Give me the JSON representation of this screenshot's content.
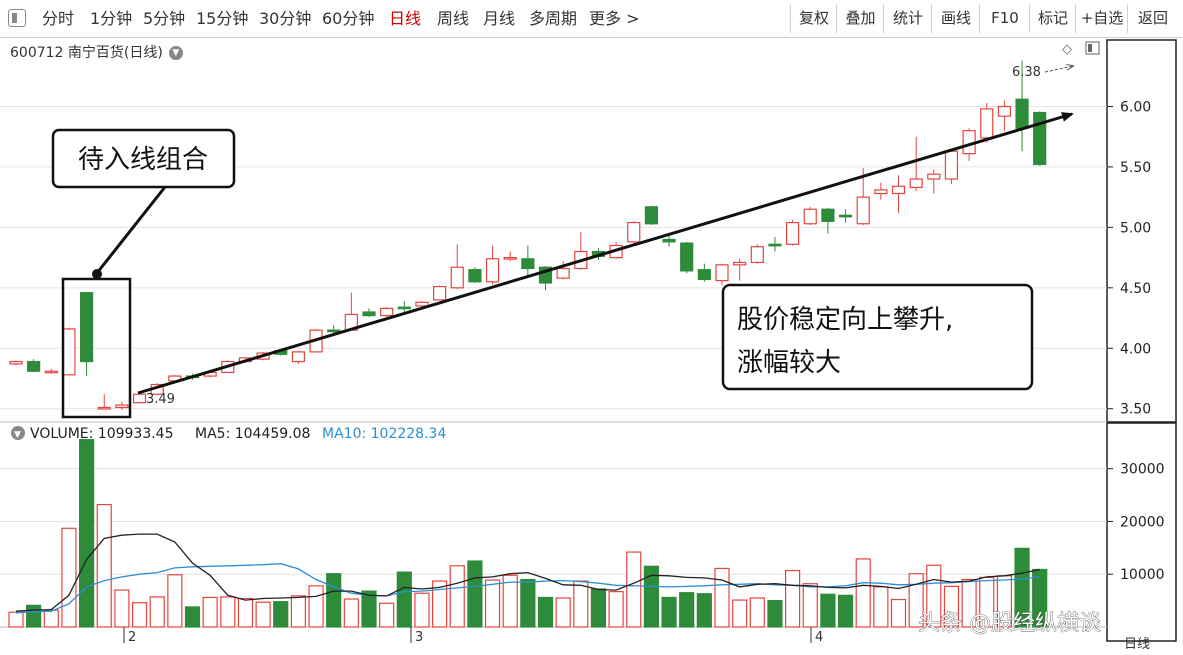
{
  "toolbar": {
    "periods": [
      "分时",
      "1分钟",
      "5分钟",
      "15分钟",
      "30分钟",
      "60分钟",
      "日线",
      "周线",
      "月线",
      "多周期",
      "更多 >"
    ],
    "active_index": 6,
    "actions": [
      "复权",
      "叠加",
      "统计",
      "画线",
      "F10",
      "标记",
      "+自选",
      "返回"
    ]
  },
  "stock": {
    "title": "600712 南宁百货(日线)"
  },
  "price_axis": {
    "ticks": [
      "6.00",
      "5.50",
      "5.00",
      "4.50",
      "4.00",
      "3.50"
    ],
    "tick_values": [
      6.0,
      5.5,
      5.0,
      4.5,
      4.0,
      3.5
    ]
  },
  "annotations": {
    "high_label": "6.38",
    "low_label": "3.49",
    "callout_left": "待入线组合",
    "callout_right_line1": "股价稳定向上攀升,",
    "callout_right_line2": "涨幅较大"
  },
  "volume": {
    "label": "VOLUME: 109933.45",
    "ma5_label": "MA5: 104459.08",
    "ma10_label": "MA10: 102228.34",
    "ticks": [
      "30000",
      "20000",
      "10000"
    ],
    "tick_values": [
      30000,
      20000,
      10000
    ]
  },
  "date_axis": {
    "labels": [
      "2",
      "3",
      "4"
    ],
    "period_label": "日线"
  },
  "watermark": "头条 @股经纵横谈",
  "colors": {
    "up": "#e8443f",
    "down": "#2e8b3a",
    "ma5": "#222222",
    "ma10": "#2a8fd6",
    "active_tab": "#d50000"
  },
  "chart_data": {
    "type": "candlestick",
    "y_range": [
      3.39,
      6.55
    ],
    "volume_range": [
      0,
      36000
    ],
    "candles": [
      {
        "o": 3.87,
        "c": 3.89,
        "h": 3.9,
        "l": 3.86,
        "up": true
      },
      {
        "o": 3.89,
        "c": 3.81,
        "h": 3.91,
        "l": 3.8,
        "up": false
      },
      {
        "o": 3.81,
        "c": 3.81,
        "h": 3.83,
        "l": 3.79,
        "up": true
      },
      {
        "o": 3.78,
        "c": 4.16,
        "h": 4.17,
        "l": 3.78,
        "up": true
      },
      {
        "o": 4.46,
        "c": 3.89,
        "h": 4.46,
        "l": 3.77,
        "up": false
      },
      {
        "o": 3.5,
        "c": 3.51,
        "h": 3.62,
        "l": 3.5,
        "up": true
      },
      {
        "o": 3.51,
        "c": 3.53,
        "h": 3.56,
        "l": 3.49,
        "up": true
      },
      {
        "o": 3.55,
        "c": 3.62,
        "h": 3.63,
        "l": 3.55,
        "up": true
      },
      {
        "o": 3.62,
        "c": 3.7,
        "h": 3.71,
        "l": 3.61,
        "up": true
      },
      {
        "o": 3.73,
        "c": 3.77,
        "h": 3.78,
        "l": 3.72,
        "up": true
      },
      {
        "o": 3.77,
        "c": 3.76,
        "h": 3.79,
        "l": 3.74,
        "up": false
      },
      {
        "o": 3.77,
        "c": 3.8,
        "h": 3.82,
        "l": 3.76,
        "up": true
      },
      {
        "o": 3.8,
        "c": 3.89,
        "h": 3.9,
        "l": 3.8,
        "up": true
      },
      {
        "o": 3.89,
        "c": 3.92,
        "h": 3.93,
        "l": 3.88,
        "up": true
      },
      {
        "o": 3.91,
        "c": 3.96,
        "h": 3.97,
        "l": 3.9,
        "up": true
      },
      {
        "o": 3.98,
        "c": 3.95,
        "h": 3.99,
        "l": 3.94,
        "up": false
      },
      {
        "o": 3.89,
        "c": 3.97,
        "h": 3.98,
        "l": 3.87,
        "up": true
      },
      {
        "o": 3.97,
        "c": 4.15,
        "h": 4.16,
        "l": 3.97,
        "up": true
      },
      {
        "o": 4.15,
        "c": 4.15,
        "h": 4.19,
        "l": 4.1,
        "up": false
      },
      {
        "o": 4.15,
        "c": 4.28,
        "h": 4.46,
        "l": 4.15,
        "up": true
      },
      {
        "o": 4.3,
        "c": 4.27,
        "h": 4.33,
        "l": 4.26,
        "up": false
      },
      {
        "o": 4.27,
        "c": 4.33,
        "h": 4.34,
        "l": 4.26,
        "up": true
      },
      {
        "o": 4.34,
        "c": 4.34,
        "h": 4.39,
        "l": 4.29,
        "up": false
      },
      {
        "o": 4.35,
        "c": 4.38,
        "h": 4.39,
        "l": 4.34,
        "up": true
      },
      {
        "o": 4.4,
        "c": 4.51,
        "h": 4.52,
        "l": 4.4,
        "up": true
      },
      {
        "o": 4.5,
        "c": 4.67,
        "h": 4.86,
        "l": 4.49,
        "up": true
      },
      {
        "o": 4.65,
        "c": 4.55,
        "h": 4.67,
        "l": 4.54,
        "up": false
      },
      {
        "o": 4.55,
        "c": 4.74,
        "h": 4.85,
        "l": 4.53,
        "up": true
      },
      {
        "o": 4.75,
        "c": 4.74,
        "h": 4.8,
        "l": 4.72,
        "up": true
      },
      {
        "o": 4.74,
        "c": 4.66,
        "h": 4.85,
        "l": 4.6,
        "up": false
      },
      {
        "o": 4.67,
        "c": 4.54,
        "h": 4.68,
        "l": 4.48,
        "up": false
      },
      {
        "o": 4.58,
        "c": 4.66,
        "h": 4.72,
        "l": 4.57,
        "up": true
      },
      {
        "o": 4.66,
        "c": 4.8,
        "h": 4.96,
        "l": 4.65,
        "up": true
      },
      {
        "o": 4.8,
        "c": 4.76,
        "h": 4.83,
        "l": 4.73,
        "up": false
      },
      {
        "o": 4.75,
        "c": 4.85,
        "h": 4.88,
        "l": 4.74,
        "up": true
      },
      {
        "o": 4.88,
        "c": 5.04,
        "h": 5.05,
        "l": 4.87,
        "up": true
      },
      {
        "o": 5.17,
        "c": 5.03,
        "h": 5.18,
        "l": 5.02,
        "up": false
      },
      {
        "o": 4.9,
        "c": 4.88,
        "h": 4.93,
        "l": 4.84,
        "up": false
      },
      {
        "o": 4.87,
        "c": 4.64,
        "h": 4.88,
        "l": 4.62,
        "up": false
      },
      {
        "o": 4.65,
        "c": 4.57,
        "h": 4.7,
        "l": 4.55,
        "up": false
      },
      {
        "o": 4.56,
        "c": 4.69,
        "h": 4.7,
        "l": 4.52,
        "up": true
      },
      {
        "o": 4.69,
        "c": 4.71,
        "h": 4.74,
        "l": 4.56,
        "up": true
      },
      {
        "o": 4.71,
        "c": 4.84,
        "h": 4.86,
        "l": 4.7,
        "up": true
      },
      {
        "o": 4.86,
        "c": 4.86,
        "h": 4.92,
        "l": 4.8,
        "up": false
      },
      {
        "o": 4.86,
        "c": 5.04,
        "h": 5.06,
        "l": 4.85,
        "up": true
      },
      {
        "o": 5.03,
        "c": 5.15,
        "h": 5.17,
        "l": 5.02,
        "up": true
      },
      {
        "o": 5.15,
        "c": 5.05,
        "h": 5.16,
        "l": 4.95,
        "up": false
      },
      {
        "o": 5.1,
        "c": 5.1,
        "h": 5.15,
        "l": 5.04,
        "up": false
      },
      {
        "o": 5.03,
        "c": 5.25,
        "h": 5.49,
        "l": 5.02,
        "up": true
      },
      {
        "o": 5.28,
        "c": 5.31,
        "h": 5.37,
        "l": 5.23,
        "up": true
      },
      {
        "o": 5.28,
        "c": 5.34,
        "h": 5.43,
        "l": 5.12,
        "up": true
      },
      {
        "o": 5.33,
        "c": 5.4,
        "h": 5.75,
        "l": 5.3,
        "up": true
      },
      {
        "o": 5.4,
        "c": 5.44,
        "h": 5.48,
        "l": 5.28,
        "up": true
      },
      {
        "o": 5.4,
        "c": 5.63,
        "h": 5.65,
        "l": 5.36,
        "up": true
      },
      {
        "o": 5.61,
        "c": 5.8,
        "h": 5.82,
        "l": 5.55,
        "up": true
      },
      {
        "o": 5.74,
        "c": 5.98,
        "h": 6.03,
        "l": 5.7,
        "up": true
      },
      {
        "o": 5.92,
        "c": 6.0,
        "h": 6.05,
        "l": 5.8,
        "up": true
      },
      {
        "o": 6.06,
        "c": 5.82,
        "h": 6.38,
        "l": 5.63,
        "up": false
      },
      {
        "o": 5.95,
        "c": 5.52,
        "h": 5.96,
        "l": 5.51,
        "up": false
      }
    ],
    "volumes": [
      2800,
      4100,
      3200,
      18700,
      35500,
      23200,
      7000,
      4600,
      5700,
      9900,
      3800,
      5600,
      5700,
      5400,
      4700,
      4800,
      5900,
      7800,
      10100,
      5300,
      6800,
      4500,
      10400,
      6400,
      8700,
      11600,
      12500,
      8900,
      9800,
      9000,
      5600,
      5500,
      8700,
      7200,
      6700,
      14200,
      11500,
      5600,
      6500,
      6300,
      11100,
      5100,
      5500,
      5000,
      10700,
      8200,
      6200,
      6000,
      12900,
      7600,
      5200,
      10100,
      11700,
      7700,
      9000,
      9400,
      9700,
      14900,
      10900
    ],
    "ma5": [
      3000,
      3200,
      3300,
      6000,
      12800,
      16800,
      17400,
      17600,
      17600,
      16100,
      12100,
      9800,
      6000,
      5100,
      5400,
      5500,
      5600,
      5800,
      6800,
      6800,
      6000,
      5900,
      7500,
      7200,
      7500,
      8300,
      9300,
      9500,
      10100,
      10300,
      9200,
      8000,
      7900,
      7100,
      7000,
      8300,
      9800,
      9700,
      9400,
      9300,
      8900,
      7600,
      8100,
      8200,
      7900,
      7800,
      7500,
      7400,
      7900,
      7700,
      7300,
      8100,
      9000,
      8500,
      8700,
      9500,
      9700,
      10200,
      10900
    ],
    "ma10": [
      2700,
      2900,
      3000,
      4400,
      7600,
      8800,
      9500,
      10000,
      10300,
      11200,
      11400,
      11500,
      11600,
      11700,
      11800,
      12000,
      11000,
      9000,
      7600,
      6400,
      6000,
      5900,
      6700,
      6800,
      7100,
      7400,
      7700,
      8100,
      8500,
      8500,
      8700,
      8800,
      8600,
      8300,
      7900,
      7800,
      7700,
      7600,
      7700,
      7800,
      8000,
      8100,
      8200,
      8000,
      7900,
      7600,
      7600,
      7800,
      8400,
      8300,
      8000,
      8100,
      8300,
      8400,
      8600,
      8800,
      8900,
      9100,
      9500
    ]
  }
}
